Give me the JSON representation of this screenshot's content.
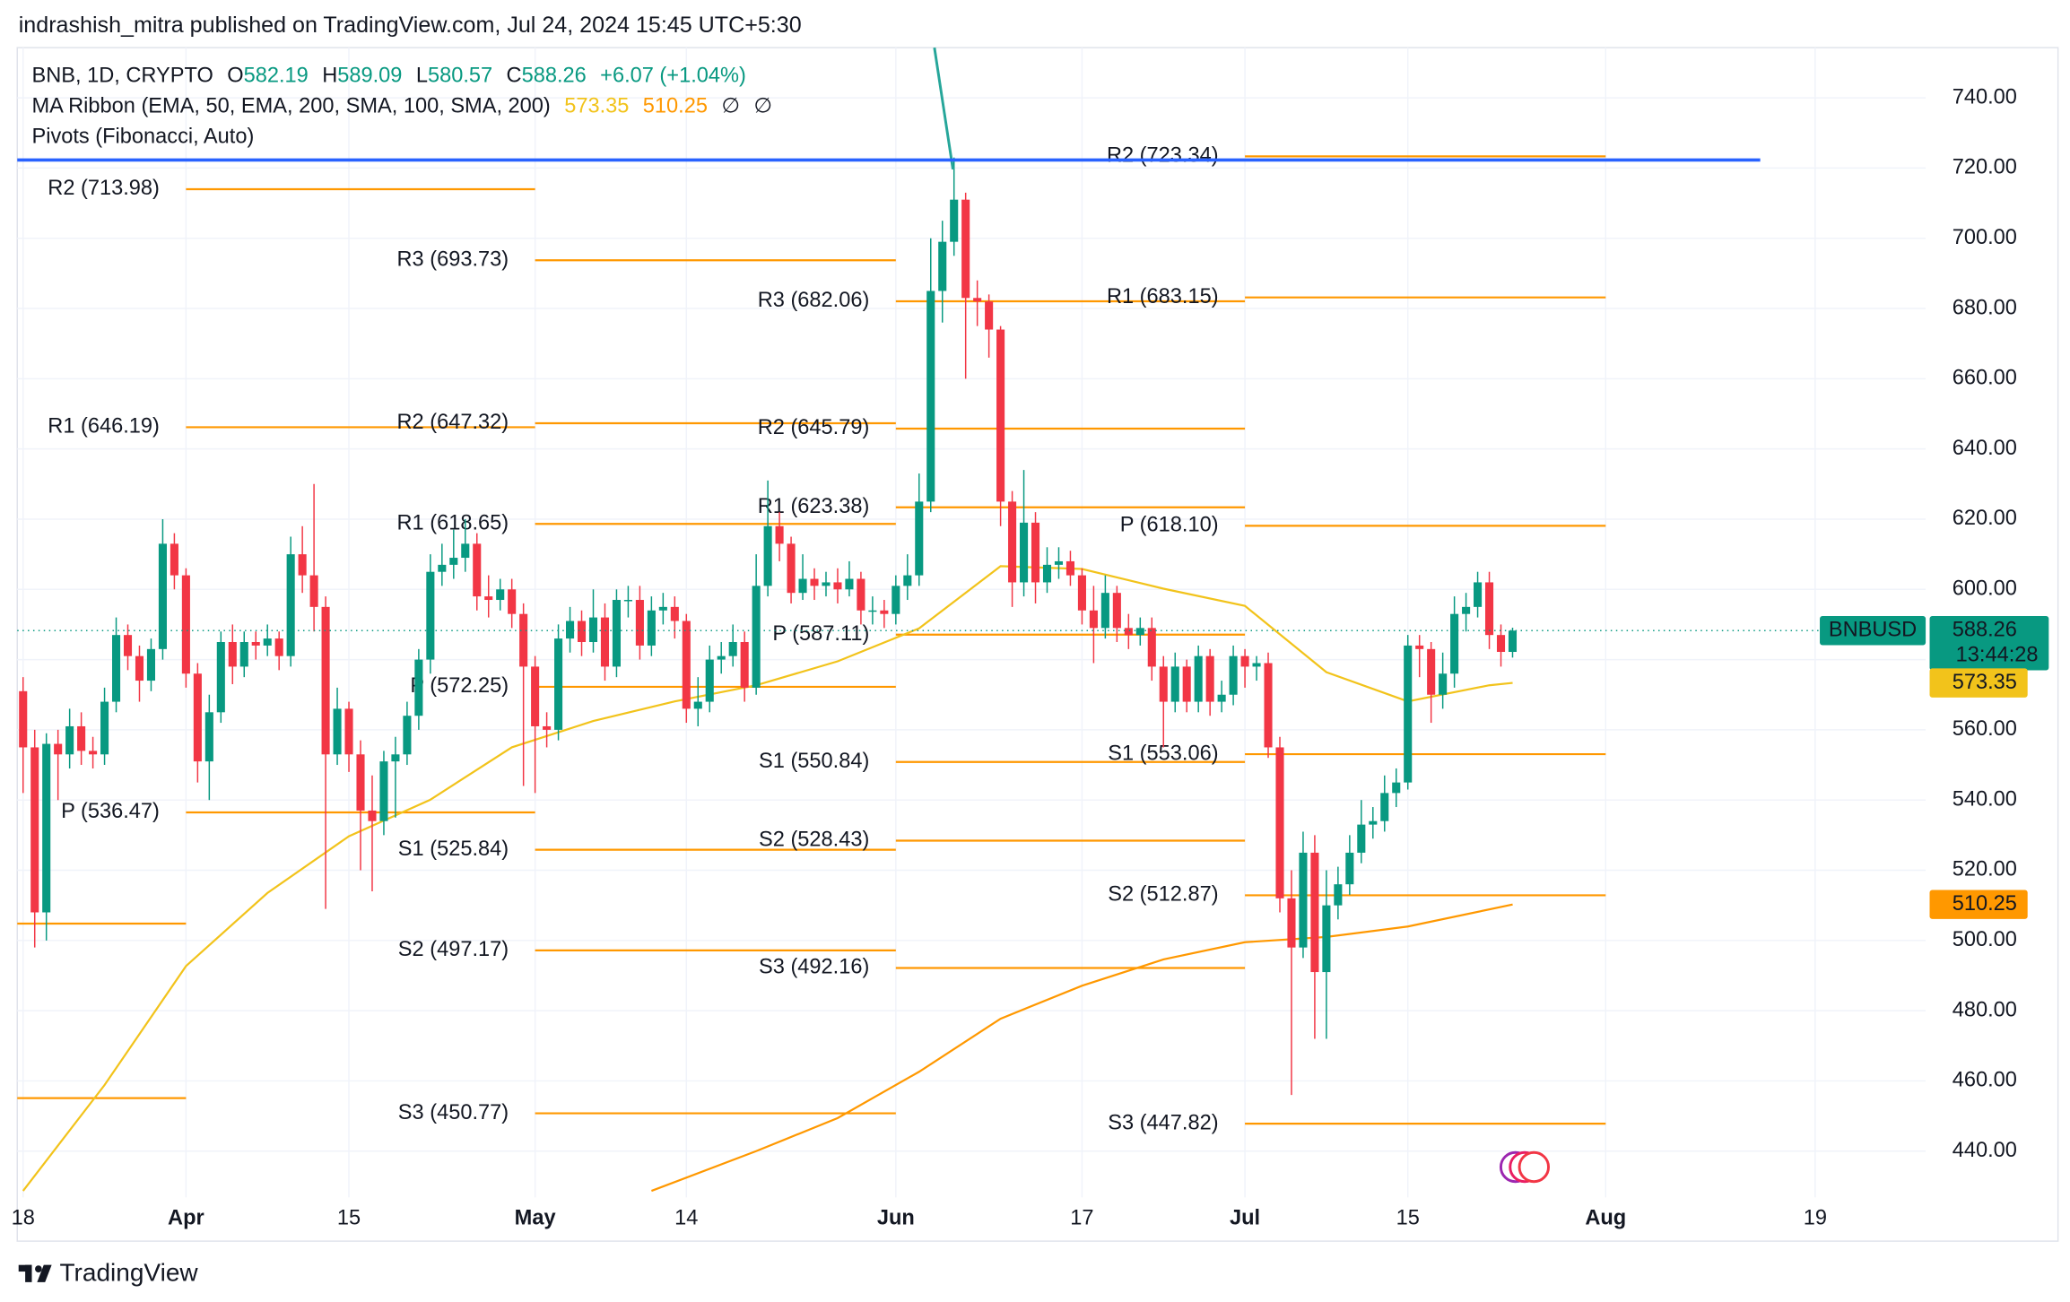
{
  "header": "indrashish_mitra published on TradingView.com, Jul 24, 2024 15:45 UTC+5:30",
  "footer": "TradingView",
  "chart_data": {
    "type": "candlestick",
    "symbol": "BNB, 1D, CRYPTO",
    "ohlc_prefixes": [
      "O",
      "H",
      "L",
      "C"
    ],
    "change": "+6.07 (+1.04%)",
    "indicators": [
      "MA Ribbon (EMA, 50, EMA, 200, SMA, 100, SMA, 200)",
      "Pivots (Fibonacci, Auto)"
    ],
    "na_marks": [
      "∅",
      "∅"
    ],
    "ticker": "BNBUSD",
    "countdown": "13:44:28",
    "colors": {
      "up": "#089981",
      "down": "#f23645"
    },
    "x": [
      "03-18",
      "03-19",
      "03-20",
      "03-21",
      "03-22",
      "03-23",
      "03-24",
      "03-25",
      "03-26",
      "03-27",
      "03-28",
      "03-29",
      "03-30",
      "03-31",
      "04-01",
      "04-02",
      "04-03",
      "04-04",
      "04-05",
      "04-06",
      "04-07",
      "04-08",
      "04-09",
      "04-10",
      "04-11",
      "04-12",
      "04-13",
      "04-14",
      "04-15",
      "04-16",
      "04-17",
      "04-18",
      "04-19",
      "04-20",
      "04-21",
      "04-22",
      "04-23",
      "04-24",
      "04-25",
      "04-26",
      "04-27",
      "04-28",
      "04-29",
      "04-30",
      "05-01",
      "05-02",
      "05-03",
      "05-04",
      "05-05",
      "05-06",
      "05-07",
      "05-08",
      "05-09",
      "05-10",
      "05-11",
      "05-12",
      "05-13",
      "05-14",
      "05-15",
      "05-16",
      "05-17",
      "05-18",
      "05-19",
      "05-20",
      "05-21",
      "05-22",
      "05-23",
      "05-24",
      "05-25",
      "05-26",
      "05-27",
      "05-28",
      "05-29",
      "05-30",
      "05-31",
      "06-01",
      "06-02",
      "06-03",
      "06-04",
      "06-05",
      "06-06",
      "06-07",
      "06-08",
      "06-09",
      "06-10",
      "06-11",
      "06-12",
      "06-13",
      "06-14",
      "06-15",
      "06-16",
      "06-17",
      "06-18",
      "06-19",
      "06-20",
      "06-21",
      "06-22",
      "06-23",
      "06-24",
      "06-25",
      "06-26",
      "06-27",
      "06-28",
      "06-29",
      "06-30",
      "07-01",
      "07-02",
      "07-03",
      "07-04",
      "07-05",
      "07-06",
      "07-07",
      "07-08",
      "07-09",
      "07-10",
      "07-11",
      "07-12",
      "07-13",
      "07-14",
      "07-15",
      "07-16",
      "07-17",
      "07-18",
      "07-19",
      "07-20",
      "07-21",
      "07-22",
      "07-23",
      "07-24"
    ],
    "open": [
      571,
      555,
      508,
      556,
      553,
      561,
      554,
      553,
      568,
      587,
      581,
      574,
      583,
      613,
      604,
      576,
      551,
      565,
      585,
      578,
      585,
      584,
      586,
      581,
      610,
      604,
      595,
      553,
      566,
      553,
      537,
      534,
      551,
      553,
      564,
      580,
      605,
      607,
      609,
      613,
      598,
      597,
      600,
      593,
      578,
      561,
      560,
      586,
      591,
      585,
      592,
      578,
      597,
      597,
      584,
      594,
      595,
      591,
      566,
      568,
      580,
      581,
      585,
      572,
      601,
      618,
      613,
      599,
      603,
      601,
      602,
      600,
      603,
      594,
      594,
      593,
      601,
      604,
      625,
      685,
      699,
      711,
      683,
      682,
      674,
      625,
      602,
      619,
      602,
      607,
      608,
      604,
      594,
      589,
      599,
      589,
      587,
      589,
      578,
      568,
      578,
      568,
      581,
      568,
      570,
      581,
      578,
      579,
      555,
      512,
      498,
      525,
      491,
      510,
      516,
      525,
      533,
      534,
      542,
      545,
      584,
      583,
      570,
      576,
      593,
      595,
      602,
      587,
      582.19
    ],
    "high": [
      575,
      560,
      559,
      560,
      566,
      565,
      558,
      572,
      592,
      590,
      584,
      586,
      620,
      616,
      606,
      579,
      570,
      588,
      590,
      588,
      588,
      590,
      588,
      615,
      618,
      630,
      598,
      572,
      568,
      557,
      547,
      554,
      558,
      568,
      583,
      610,
      613,
      617,
      620,
      616,
      604,
      603,
      603,
      596,
      581,
      565,
      590,
      595,
      594,
      600,
      596,
      600,
      601,
      601,
      598,
      599,
      598,
      593,
      575,
      584,
      585,
      590,
      588,
      610,
      631,
      622,
      615,
      610,
      606,
      605,
      606,
      608,
      605,
      598,
      597,
      604,
      610,
      633,
      700,
      705,
      723,
      713,
      688,
      684,
      675,
      628,
      634,
      622,
      612,
      612,
      611,
      606,
      601,
      604,
      601,
      593,
      592,
      592,
      581,
      582,
      580,
      584,
      583,
      574,
      584,
      583,
      581,
      582,
      558,
      520,
      531,
      530,
      520,
      521,
      530,
      540,
      538,
      547,
      549,
      587,
      587,
      585,
      582,
      598,
      599,
      605,
      605,
      590,
      589.09
    ],
    "low": [
      542,
      498,
      500,
      540,
      549,
      550,
      549,
      550,
      565,
      577,
      568,
      571,
      580,
      600,
      572,
      545,
      540,
      562,
      573,
      575,
      580,
      581,
      577,
      578,
      599,
      588,
      509,
      550,
      548,
      520,
      514,
      530,
      535,
      550,
      560,
      576,
      601,
      603,
      605,
      594,
      592,
      594,
      589,
      544,
      542,
      555,
      557,
      582,
      581,
      582,
      574,
      575,
      592,
      580,
      581,
      590,
      586,
      562,
      561,
      565,
      576,
      578,
      568,
      570,
      598,
      608,
      596,
      597,
      597,
      598,
      596,
      598,
      590,
      590,
      589,
      590,
      597,
      601,
      622,
      676,
      695,
      660,
      675,
      666,
      618,
      595,
      598,
      596,
      599,
      603,
      601,
      590,
      579,
      586,
      585,
      583,
      584,
      574,
      555,
      565,
      565,
      565,
      564,
      565,
      567,
      572,
      574,
      552,
      508,
      456,
      495,
      472,
      472,
      506,
      513,
      522,
      529,
      531,
      538,
      543,
      575,
      562,
      566,
      572,
      588,
      592,
      583,
      578,
      580.57
    ],
    "close": [
      555,
      508,
      556,
      553,
      561,
      554,
      553,
      568,
      587,
      581,
      574,
      583,
      613,
      604,
      576,
      551,
      565,
      585,
      578,
      585,
      584,
      586,
      581,
      610,
      604,
      595,
      553,
      566,
      553,
      537,
      534,
      551,
      553,
      564,
      580,
      605,
      607,
      609,
      613,
      598,
      597,
      600,
      593,
      578,
      561,
      560,
      586,
      591,
      585,
      592,
      578,
      597,
      597,
      584,
      594,
      595,
      591,
      566,
      568,
      580,
      581,
      585,
      572,
      601,
      618,
      613,
      599,
      603,
      601,
      602,
      600,
      603,
      594,
      594,
      593,
      601,
      604,
      625,
      685,
      699,
      711,
      683,
      682,
      674,
      625,
      602,
      619,
      602,
      607,
      608,
      604,
      594,
      589,
      599,
      589,
      587,
      589,
      578,
      568,
      578,
      568,
      581,
      568,
      570,
      581,
      578,
      579,
      555,
      512,
      498,
      525,
      491,
      510,
      516,
      525,
      533,
      534,
      542,
      545,
      584,
      583,
      570,
      576,
      593,
      595,
      602,
      587,
      582.19,
      588.26
    ],
    "ma": [
      {
        "color": "#f2c31b",
        "x": [
          "03-18",
          "03-25",
          "04-01",
          "04-08",
          "04-15",
          "04-22",
          "04-29",
          "05-06",
          "05-13",
          "05-20",
          "05-27",
          "06-03",
          "06-10",
          "06-17",
          "06-24",
          "07-01",
          "07-08",
          "07-15",
          "07-22",
          "07-24"
        ],
        "values": [
          428.7,
          458.8,
          492.7,
          513.5,
          529.7,
          540.1,
          555,
          562.5,
          568.1,
          572.7,
          579.5,
          588.9,
          606.6,
          605.8,
          600.2,
          595.3,
          576.4,
          568.1,
          572.7,
          573.35
        ]
      },
      {
        "color": "#ff9800",
        "x": [
          "05-11",
          "05-20",
          "05-27",
          "06-03",
          "06-10",
          "06-17",
          "06-24",
          "07-01",
          "07-08",
          "07-15",
          "07-24"
        ],
        "values": [
          428.7,
          440,
          449.4,
          462.6,
          477.7,
          487.1,
          494.6,
          499.5,
          501,
          504,
          510.25
        ]
      }
    ],
    "pivots": {
      "color": "#ff9800",
      "label_color": "#f59a23",
      "periods": [
        {
          "start": "03-01",
          "end": "04-01",
          "levels": [
            {
              "label": null,
              "value": 504.8
            },
            {
              "label": null,
              "value": 455.1
            }
          ]
        },
        {
          "start": "04-01",
          "end": "05-01",
          "levels": [
            {
              "label": "R2 (713.98)",
              "value": 713.98
            },
            {
              "label": "R1 (646.19)",
              "value": 646.19
            },
            {
              "label": "P (536.47)",
              "value": 536.47
            }
          ]
        },
        {
          "start": "05-01",
          "end": "06-01",
          "levels": [
            {
              "label": "R3 (693.73)",
              "value": 693.73
            },
            {
              "label": "R2 (647.32)",
              "value": 647.32
            },
            {
              "label": "R1 (618.65)",
              "value": 618.65
            },
            {
              "label": "P (572.25)",
              "value": 572.25
            },
            {
              "label": "S1 (525.84)",
              "value": 525.84
            },
            {
              "label": "S2 (497.17)",
              "value": 497.17
            },
            {
              "label": "S3 (450.77)",
              "value": 450.77
            }
          ]
        },
        {
          "start": "06-01",
          "end": "07-01",
          "levels": [
            {
              "label": "R3 (682.06)",
              "value": 682.06
            },
            {
              "label": "R2 (645.79)",
              "value": 645.79
            },
            {
              "label": "R1 (623.38)",
              "value": 623.38
            },
            {
              "label": "P (587.11)",
              "value": 587.11
            },
            {
              "label": "S1 (550.84)",
              "value": 550.84
            },
            {
              "label": "S2 (528.43)",
              "value": 528.43
            },
            {
              "label": "S3 (492.16)",
              "value": 492.16
            }
          ]
        },
        {
          "start": "07-01",
          "end": "08-01",
          "levels": [
            {
              "label": "R2 (723.34)",
              "value": 723.34
            },
            {
              "label": "R1 (683.15)",
              "value": 683.15
            },
            {
              "label": "P (618.10)",
              "value": 618.1
            },
            {
              "label": "S1 (553.06)",
              "value": 553.06
            },
            {
              "label": "S2 (512.87)",
              "value": 512.87
            },
            {
              "label": "S3 (447.82)",
              "value": 447.82
            }
          ]
        }
      ]
    },
    "hline": {
      "value": 722.3,
      "color": "#2962ff"
    },
    "xlim": [
      "03-18",
      "08-28"
    ],
    "xticks": [
      {
        "value": "03-18",
        "label": "18"
      },
      {
        "value": "04-01",
        "label": "Apr"
      },
      {
        "value": "04-15",
        "label": "15"
      },
      {
        "value": "05-01",
        "label": "May"
      },
      {
        "value": "05-14",
        "label": "14"
      },
      {
        "value": "06-01",
        "label": "Jun"
      },
      {
        "value": "06-17",
        "label": "17"
      },
      {
        "value": "07-01",
        "label": "Jul"
      },
      {
        "value": "07-15",
        "label": "15"
      },
      {
        "value": "08-01",
        "label": "Aug"
      },
      {
        "value": "08-19",
        "label": "19"
      }
    ],
    "ylim": [
      426.8,
      754.3
    ],
    "yticks": [
      {
        "value": 440,
        "label": "440.00"
      },
      {
        "value": 460,
        "label": "460.00"
      },
      {
        "value": 480,
        "label": "480.00"
      },
      {
        "value": 500,
        "label": "500.00"
      },
      {
        "value": 520,
        "label": "520.00"
      },
      {
        "value": 540,
        "label": "540.00"
      },
      {
        "value": 560,
        "label": "560.00"
      },
      {
        "value": 580,
        "label": "580.00"
      },
      {
        "value": 600,
        "label": "600.00"
      },
      {
        "value": 620,
        "label": "620.00"
      },
      {
        "value": 640,
        "label": "640.00"
      },
      {
        "value": 660,
        "label": "660.00"
      },
      {
        "value": 680,
        "label": "680.00"
      },
      {
        "value": 700,
        "label": "700.00"
      },
      {
        "value": 720,
        "label": "720.00"
      },
      {
        "value": 740,
        "label": "740.00"
      }
    ],
    "grid": true
  }
}
